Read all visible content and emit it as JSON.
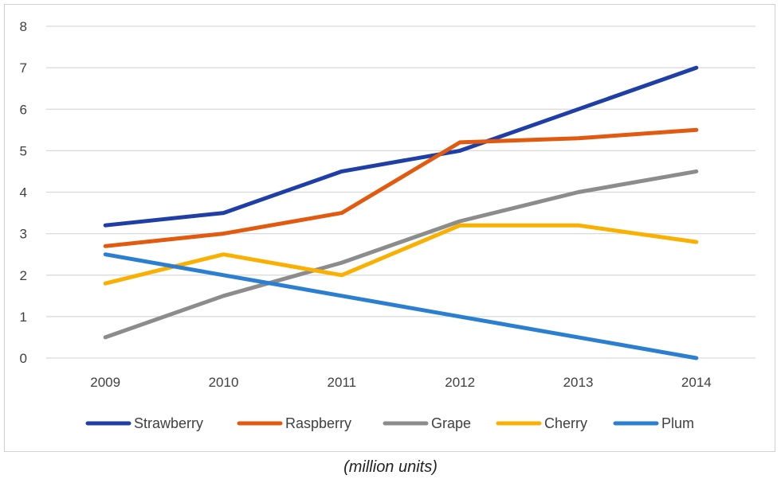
{
  "chart_data": {
    "type": "line",
    "categories": [
      "2009",
      "2010",
      "2011",
      "2012",
      "2013",
      "2014"
    ],
    "series": [
      {
        "name": "Strawberry",
        "color": "#1f3fa6",
        "values": [
          3.2,
          3.5,
          4.5,
          5.0,
          6.0,
          7.0
        ]
      },
      {
        "name": "Raspberry",
        "color": "#e15a10",
        "values": [
          2.7,
          3.0,
          3.5,
          5.2,
          5.3,
          5.5
        ]
      },
      {
        "name": "Grape",
        "color": "#8c8c8c",
        "values": [
          0.5,
          1.5,
          2.3,
          3.3,
          4.0,
          4.5
        ]
      },
      {
        "name": "Cherry",
        "color": "#f9b000",
        "values": [
          1.8,
          2.5,
          2.0,
          3.2,
          3.2,
          2.8
        ]
      },
      {
        "name": "Plum",
        "color": "#2b7fd0",
        "values": [
          2.5,
          2.0,
          1.5,
          1.0,
          0.5,
          0.0
        ]
      }
    ],
    "ylim": [
      0,
      8
    ],
    "yticks": [
      0,
      1,
      2,
      3,
      4,
      5,
      6,
      7,
      8
    ],
    "grid": true,
    "legend_position": "bottom",
    "caption": "(million units)"
  }
}
